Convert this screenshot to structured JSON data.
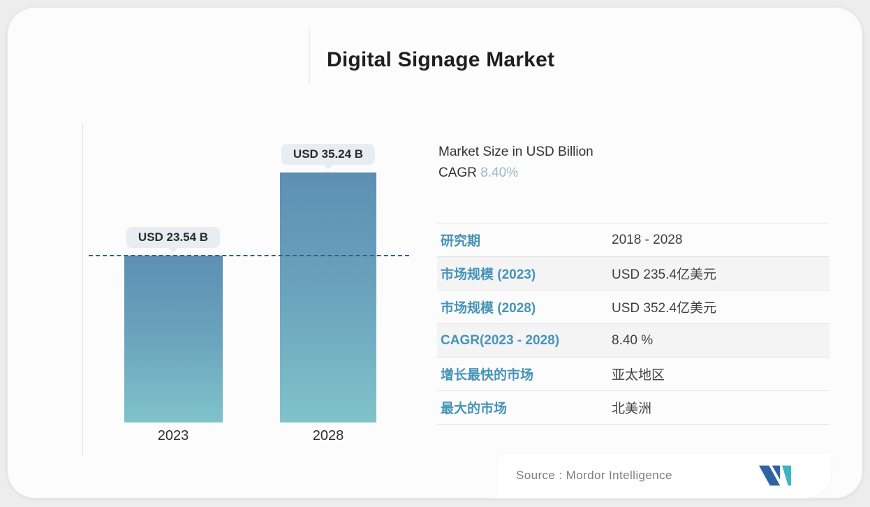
{
  "page": {
    "background": "#ededed",
    "card_background": "#fcfcfc"
  },
  "header": {
    "title": "Digital Signage Market"
  },
  "chart_data": {
    "type": "bar",
    "title": "Digital Signage Market",
    "categories": [
      "2023",
      "2028"
    ],
    "values": [
      23.54,
      35.24
    ],
    "value_labels": [
      "USD 23.54 B",
      "USD 35.24 B"
    ],
    "unit": "USD Billion",
    "ylim": [
      0,
      36
    ],
    "grid": false,
    "bar_colors": {
      "top": "#5d8fb4",
      "bottom": "#80c3cb"
    },
    "reference_line": {
      "value": 23.54,
      "style": "dashed",
      "color": "#2d5f8f"
    }
  },
  "summary": {
    "market_size_line": "Market Size in USD Billion",
    "cagr_label": "CAGR",
    "cagr_value": "8.40%",
    "cagr_value_color": "#9db8cc"
  },
  "table": {
    "label_color": "#4694b7",
    "value_color": "#3e3e3e",
    "rows": [
      {
        "label": "研究期",
        "value": "2018 - 2028"
      },
      {
        "label": "市场规模 (2023)",
        "value": "USD 235.4亿美元"
      },
      {
        "label": "市场规模 (2028)",
        "value": "USD 352.4亿美元"
      },
      {
        "label": "CAGR(2023 - 2028)",
        "value": "8.40 %"
      },
      {
        "label": "增长最快的市场",
        "value": "亚太地区"
      },
      {
        "label": "最大的市场",
        "value": "北美洲"
      }
    ]
  },
  "footer": {
    "source_label": "Source :",
    "source_name": "Mordor Intelligence",
    "logo_name": "mordor-intelligence-logo",
    "logo_colors": {
      "blue": "#2e63a4",
      "teal": "#3eb5c6"
    }
  }
}
